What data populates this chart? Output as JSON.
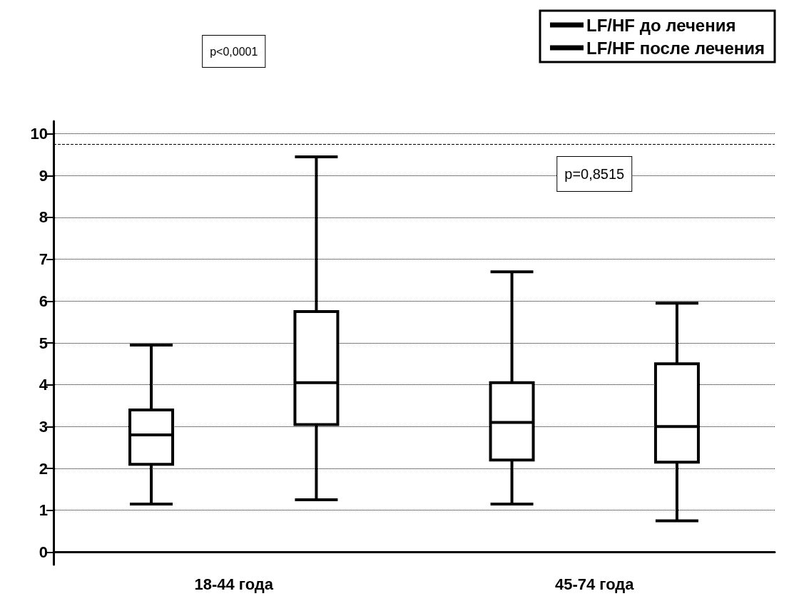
{
  "chart_data": {
    "type": "box",
    "categories": [
      "18-44 года",
      "45-74 года"
    ],
    "series": [
      {
        "name": "LF/HF до лечения",
        "color": "#000000",
        "boxes": [
          {
            "low": 1.15,
            "q1": 2.1,
            "median": 2.8,
            "q3": 3.4,
            "high": 4.95
          },
          {
            "low": 1.15,
            "q1": 2.2,
            "median": 3.1,
            "q3": 4.05,
            "high": 6.7
          }
        ]
      },
      {
        "name": "LF/HF после лечения",
        "color": "#000000",
        "boxes": [
          {
            "low": 1.25,
            "q1": 3.05,
            "median": 4.05,
            "q3": 5.75,
            "high": 9.45
          },
          {
            "low": 0.75,
            "q1": 2.15,
            "median": 3.0,
            "q3": 4.5,
            "high": 5.95
          }
        ]
      }
    ],
    "ylim": [
      -0.3,
      10.3
    ],
    "yticks": [
      0,
      1,
      2,
      3,
      4,
      5,
      6,
      7,
      8,
      9,
      10
    ],
    "grid": "y",
    "legend": "top right",
    "ref_lines": [
      {
        "axis": "y",
        "value": 9.75,
        "color": "#000000",
        "line_style": "dashed"
      }
    ],
    "annotations": [
      "p<0,0001",
      "p=0,8515"
    ]
  }
}
